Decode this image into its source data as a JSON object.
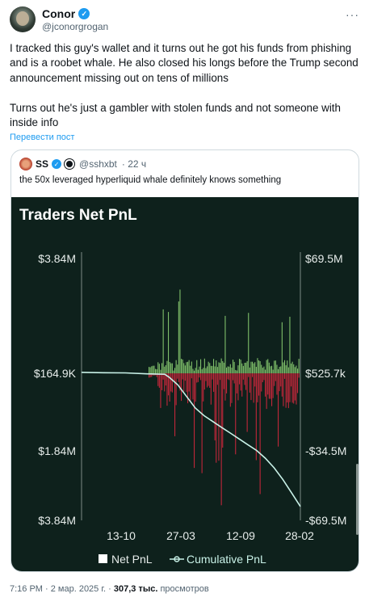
{
  "author": {
    "name": "Conor",
    "handle": "@jconorgrogan",
    "verified_mark": "✓",
    "more": "···"
  },
  "tweet": {
    "paragraph1": "I tracked this guy's wallet and it turns out he got his funds from phishing and is a roobet whale. He also closed his longs before the Trump second announcement missing out on tens of millions",
    "paragraph2": "Turns out he's just a gambler with stolen funds and not someone with inside info",
    "translate": "Перевести пост"
  },
  "quote": {
    "name": "SS",
    "handle": "@sshxbt",
    "age": "· 22 ч",
    "verified_mark": "✓",
    "text": "the 50x leveraged hyperliquid whale definitely knows something"
  },
  "chart_data": {
    "type": "bar",
    "title": "Traders Net PnL",
    "x_ticks": [
      "13-10",
      "27-03",
      "12-09",
      "28-02"
    ],
    "y_left_ticks": [
      "$3.84M",
      "$164.9K",
      "$1.84M",
      "$3.84M"
    ],
    "y_right_ticks": [
      "$69.5M",
      "$525.7k",
      "-$34.5M",
      "-$69.5M"
    ],
    "legend": [
      "Net PnL",
      "Cumulative PnL"
    ],
    "colors": {
      "background": "#0e211c",
      "positive": "#7fbf6a",
      "negative": "#c0273a",
      "cumulative": "#c9f2e8",
      "grid": "#7c8a86"
    },
    "cumulative_pnl": [
      [
        0,
        0.5
      ],
      [
        0.1,
        0.3
      ],
      [
        0.2,
        0.2
      ],
      [
        0.3,
        -0.3
      ],
      [
        0.38,
        -0.5
      ],
      [
        0.4,
        -2
      ],
      [
        0.44,
        -6
      ],
      [
        0.48,
        -12
      ],
      [
        0.52,
        -18
      ],
      [
        0.56,
        -22
      ],
      [
        0.6,
        -25
      ],
      [
        0.64,
        -28
      ],
      [
        0.68,
        -31
      ],
      [
        0.72,
        -34
      ],
      [
        0.76,
        -37
      ],
      [
        0.8,
        -40
      ],
      [
        0.84,
        -44
      ],
      [
        0.88,
        -49
      ],
      [
        0.92,
        -55
      ],
      [
        0.96,
        -62
      ],
      [
        1.0,
        -69
      ]
    ]
  },
  "footer": {
    "time": "7:16 PM · 2 мар. 2025 г. · ",
    "views": "307,3 тыс.",
    "views_label": " просмотров"
  }
}
